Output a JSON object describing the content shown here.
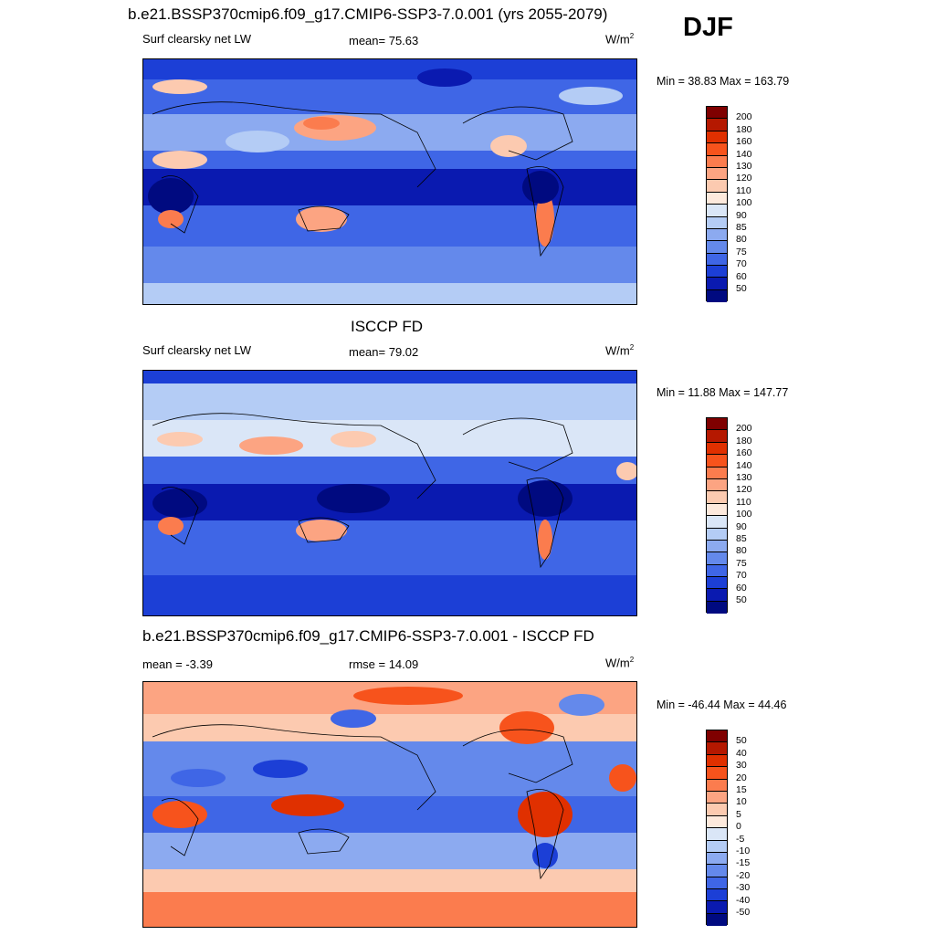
{
  "season": "DJF",
  "unit_base": "W/m",
  "unit_exp": "2",
  "panels": [
    {
      "title": "b.e21.BSSP370cmip6.f09_g17.CMIP6-SSP3-7.0.001 (yrs 2055-2079)",
      "left_label": "Surf clearsky net LW",
      "center_label": "mean=  75.63",
      "minmax": "Min =  38.83 Max = 163.79"
    },
    {
      "title": "ISCCP FD",
      "left_label": "Surf clearsky net LW",
      "center_label": "mean=  79.02",
      "minmax": "Min =  11.88 Max = 147.77"
    },
    {
      "title": "b.e21.BSSP370cmip6.f09_g17.CMIP6-SSP3-7.0.001 - ISCCP FD",
      "left_label": "mean =  -3.39",
      "center_label": "rmse =  14.09",
      "minmax": "Min = -46.44 Max =  44.46"
    }
  ],
  "chart_data": [
    {
      "type": "heatmap",
      "title": "b.e21.BSSP370cmip6.f09_g17.CMIP6-SSP3-7.0.001 (yrs 2055-2079)",
      "variable": "Surf clearsky net LW",
      "units": "W/m2",
      "mean": 75.63,
      "min": 38.83,
      "max": 163.79,
      "colorbar_levels": [
        "200",
        "180",
        "160",
        "140",
        "130",
        "120",
        "110",
        "100",
        "90",
        "85",
        "80",
        "75",
        "70",
        "60",
        "50"
      ],
      "colors": [
        "#7f0000",
        "#b51800",
        "#e03000",
        "#f7531c",
        "#fb7c4e",
        "#fca482",
        "#fccab0",
        "#fde9dc",
        "#dae6f7",
        "#b4ccf5",
        "#8caaf0",
        "#6489eb",
        "#3f66e6",
        "#1c3fd6",
        "#0a1ab0",
        "#000a80"
      ]
    },
    {
      "type": "heatmap",
      "title": "ISCCP FD",
      "variable": "Surf clearsky net LW",
      "units": "W/m2",
      "mean": 79.02,
      "min": 11.88,
      "max": 147.77,
      "colorbar_levels": [
        "200",
        "180",
        "160",
        "140",
        "130",
        "120",
        "110",
        "100",
        "90",
        "85",
        "80",
        "75",
        "70",
        "60",
        "50"
      ],
      "colors": [
        "#7f0000",
        "#b51800",
        "#e03000",
        "#f7531c",
        "#fb7c4e",
        "#fca482",
        "#fccab0",
        "#fde9dc",
        "#dae6f7",
        "#b4ccf5",
        "#8caaf0",
        "#6489eb",
        "#3f66e6",
        "#1c3fd6",
        "#0a1ab0",
        "#000a80"
      ]
    },
    {
      "type": "heatmap",
      "title": "b.e21.BSSP370cmip6.f09_g17.CMIP6-SSP3-7.0.001 - ISCCP FD",
      "units": "W/m2",
      "mean": -3.39,
      "rmse": 14.09,
      "min": -46.44,
      "max": 44.46,
      "colorbar_levels": [
        "50",
        "40",
        "30",
        "20",
        "15",
        "10",
        "5",
        "0",
        "-5",
        "-10",
        "-15",
        "-20",
        "-30",
        "-40",
        "-50"
      ],
      "colors": [
        "#7f0000",
        "#b51800",
        "#e03000",
        "#f7531c",
        "#fb7c4e",
        "#fca482",
        "#fccab0",
        "#fde9dc",
        "#dae6f7",
        "#b4ccf5",
        "#8caaf0",
        "#6489eb",
        "#3f66e6",
        "#1c3fd6",
        "#0a1ab0",
        "#000a80"
      ]
    }
  ]
}
